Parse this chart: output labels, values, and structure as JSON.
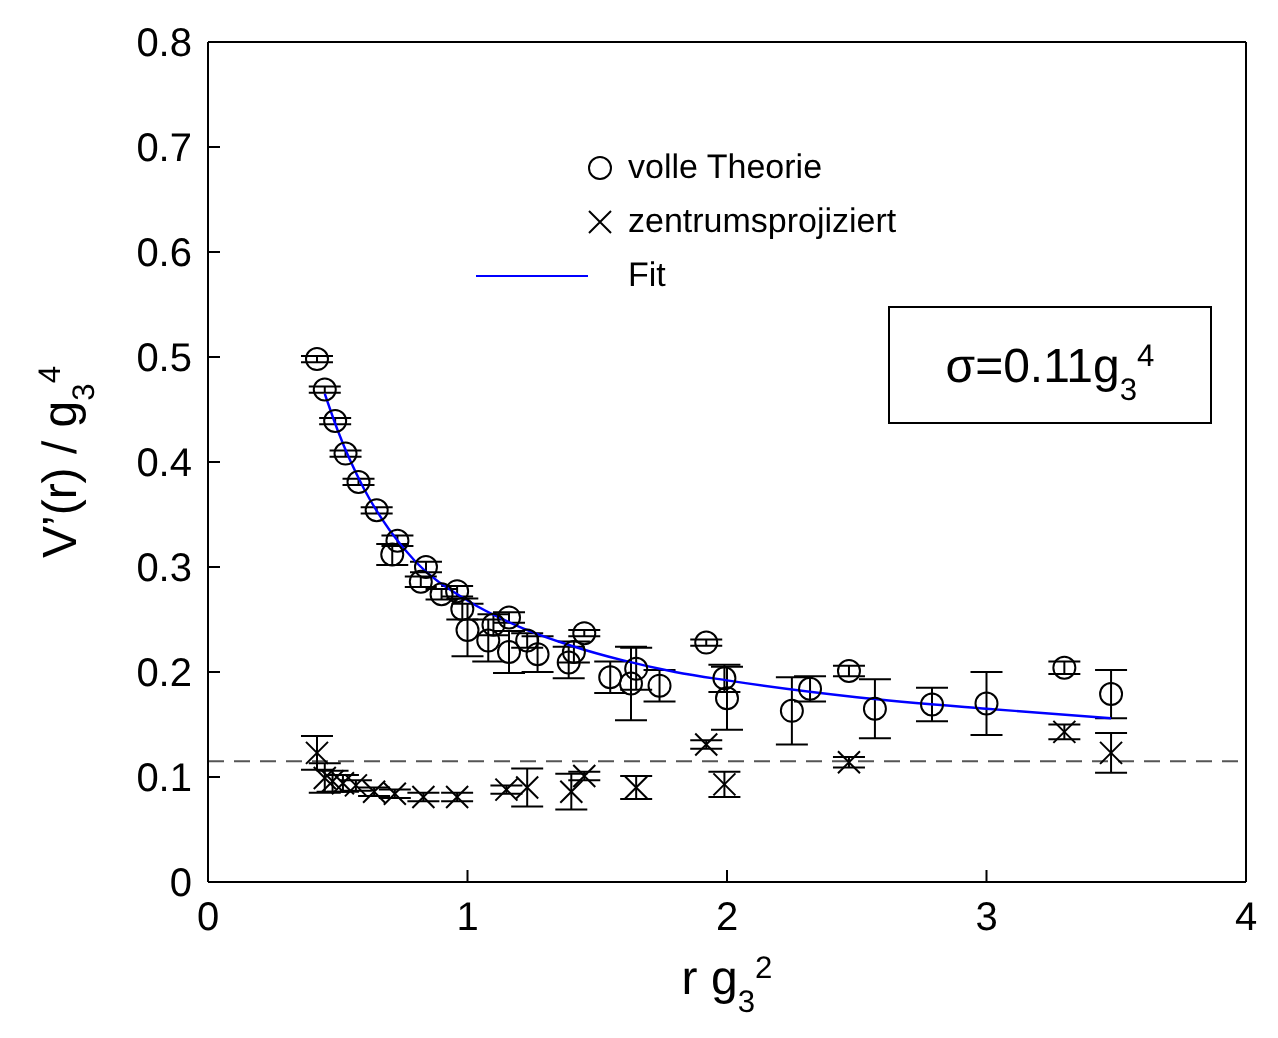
{
  "chart_data": {
    "type": "scatter",
    "xlabel": "r g$_{3}$$^{2}$",
    "ylabel": "V’(r) / g$_{3}$$^{4}$",
    "xlim": [
      0,
      4
    ],
    "xticks": [
      0,
      1,
      2,
      3,
      4
    ],
    "ylim": [
      0,
      0.8
    ],
    "yticks": [
      0,
      0.1,
      0.2,
      0.3,
      0.4,
      0.5,
      0.6,
      0.7,
      0.8
    ],
    "grid": false,
    "legend": "top",
    "annotations": [
      "σ=0.11g$_{3}$$^{4}$"
    ],
    "ref_lines": [
      {
        "axis": "y",
        "value": 0.115,
        "color": "#555555",
        "line_style": "dashed"
      }
    ],
    "series": [
      {
        "name": "volle Theorie",
        "marker": "circle",
        "color": "#000000",
        "x": [
          0.42,
          0.45,
          0.49,
          0.53,
          0.58,
          0.65,
          0.73,
          0.71,
          0.84,
          0.82,
          0.9,
          0.96,
          0.98,
          1.0,
          1.08,
          1.1,
          1.16,
          1.16,
          1.23,
          1.27,
          1.39,
          1.41,
          1.45,
          1.55,
          1.63,
          1.65,
          1.74,
          1.92,
          1.99,
          2.0,
          2.25,
          2.32,
          2.47,
          2.57,
          2.79,
          3.0,
          3.3,
          3.48
        ],
        "values": [
          0.498,
          0.469,
          0.439,
          0.408,
          0.381,
          0.354,
          0.325,
          0.312,
          0.3,
          0.286,
          0.274,
          0.277,
          0.26,
          0.24,
          0.23,
          0.245,
          0.252,
          0.219,
          0.23,
          0.217,
          0.209,
          0.219,
          0.237,
          0.195,
          0.189,
          0.203,
          0.187,
          0.228,
          0.194,
          0.175,
          0.163,
          0.184,
          0.201,
          0.165,
          0.169,
          0.17,
          0.204,
          0.179
        ],
        "errors": [
          0.003,
          0.003,
          0.003,
          0.003,
          0.003,
          0.003,
          0.005,
          0.01,
          0.005,
          0.005,
          0.005,
          0.005,
          0.01,
          0.025,
          0.02,
          0.01,
          0.005,
          0.02,
          0.007,
          0.017,
          0.015,
          0.01,
          0.003,
          0.015,
          0.035,
          0.02,
          0.015,
          0.003,
          0.013,
          0.03,
          0.032,
          0.012,
          0.005,
          0.028,
          0.016,
          0.03,
          0.006,
          0.023
        ]
      },
      {
        "name": "zentrumsprojiziert",
        "marker": "cross",
        "color": "#000000",
        "x": [
          0.42,
          0.45,
          0.48,
          0.52,
          0.57,
          0.64,
          0.72,
          0.83,
          0.96,
          1.15,
          1.23,
          1.4,
          1.45,
          1.65,
          1.92,
          1.99,
          2.47,
          3.3,
          3.48
        ],
        "values": [
          0.123,
          0.099,
          0.096,
          0.094,
          0.092,
          0.086,
          0.084,
          0.081,
          0.081,
          0.088,
          0.09,
          0.086,
          0.101,
          0.09,
          0.131,
          0.093,
          0.114,
          0.143,
          0.123
        ],
        "errors": [
          0.016,
          0.014,
          0.01,
          0.008,
          0.005,
          0.004,
          0.004,
          0.004,
          0.004,
          0.004,
          0.018,
          0.017,
          0.004,
          0.011,
          0.004,
          0.012,
          0.005,
          0.007,
          0.019
        ]
      },
      {
        "name": "Fit",
        "type": "line",
        "marker": "none",
        "line_style": "solid",
        "color": "#0000ff",
        "x": [
          0.45,
          0.5,
          0.6,
          0.7,
          0.8,
          1.0,
          1.2,
          1.4,
          1.6,
          1.8,
          2.0,
          2.5,
          3.0,
          3.48
        ],
        "values": [
          0.465,
          0.43,
          0.375,
          0.335,
          0.305,
          0.268,
          0.243,
          0.225,
          0.211,
          0.2,
          0.192,
          0.176,
          0.165,
          0.156
        ]
      }
    ]
  }
}
